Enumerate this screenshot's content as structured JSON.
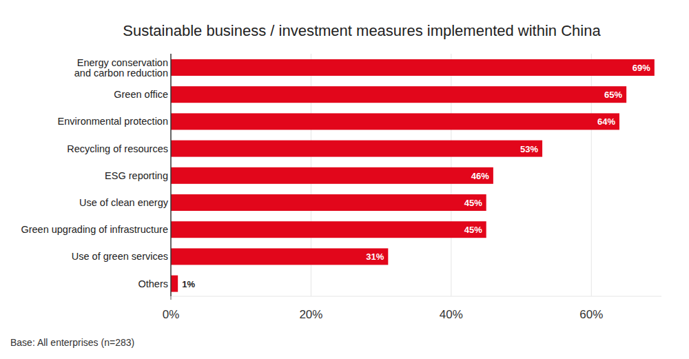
{
  "chart_data": {
    "type": "bar",
    "orientation": "horizontal",
    "title": "Sustainable business / investment measures implemented within China",
    "categories": [
      "Energy conservation\nand carbon reduction",
      "Green office",
      "Environmental protection",
      "Recycling of resources",
      "ESG reporting",
      "Use of clean energy",
      "Green upgrading of infrastructure",
      "Use of green services",
      "Others"
    ],
    "values": [
      69,
      65,
      64,
      53,
      46,
      45,
      45,
      31,
      1
    ],
    "value_labels": [
      "69%",
      "65%",
      "64%",
      "53%",
      "46%",
      "45%",
      "45%",
      "31%",
      "1%"
    ],
    "color": "#e2061b",
    "xlim": [
      0,
      70
    ],
    "xticks": [
      {
        "value": 0,
        "label": "0%"
      },
      {
        "value": 20,
        "label": "20%"
      },
      {
        "value": 40,
        "label": "40%"
      },
      {
        "value": 60,
        "label": "60%"
      }
    ],
    "grid": true,
    "data_labels": true,
    "annotations": [
      "Base: All enterprises (n=283)"
    ]
  }
}
